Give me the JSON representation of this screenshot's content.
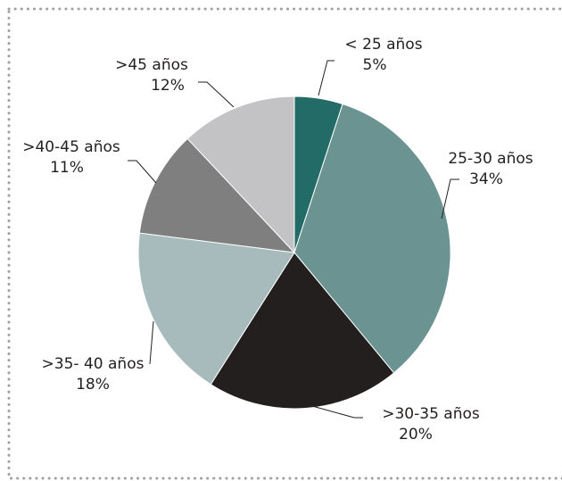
{
  "chart_data": {
    "type": "pie",
    "categories": [
      "< 25 años",
      "25-30 años",
      ">30-35 años",
      ">35- 40 años",
      ">40-45 años",
      ">45 años"
    ],
    "values": [
      5,
      34,
      20,
      18,
      11,
      12
    ],
    "value_labels": [
      "5%",
      "34%",
      "20%",
      "18%",
      "11%",
      "12%"
    ],
    "colors": [
      "#226b66",
      "#6a9391",
      "#231f1e",
      "#a7bbbc",
      "#7f7f7f",
      "#c3c3c5"
    ]
  }
}
